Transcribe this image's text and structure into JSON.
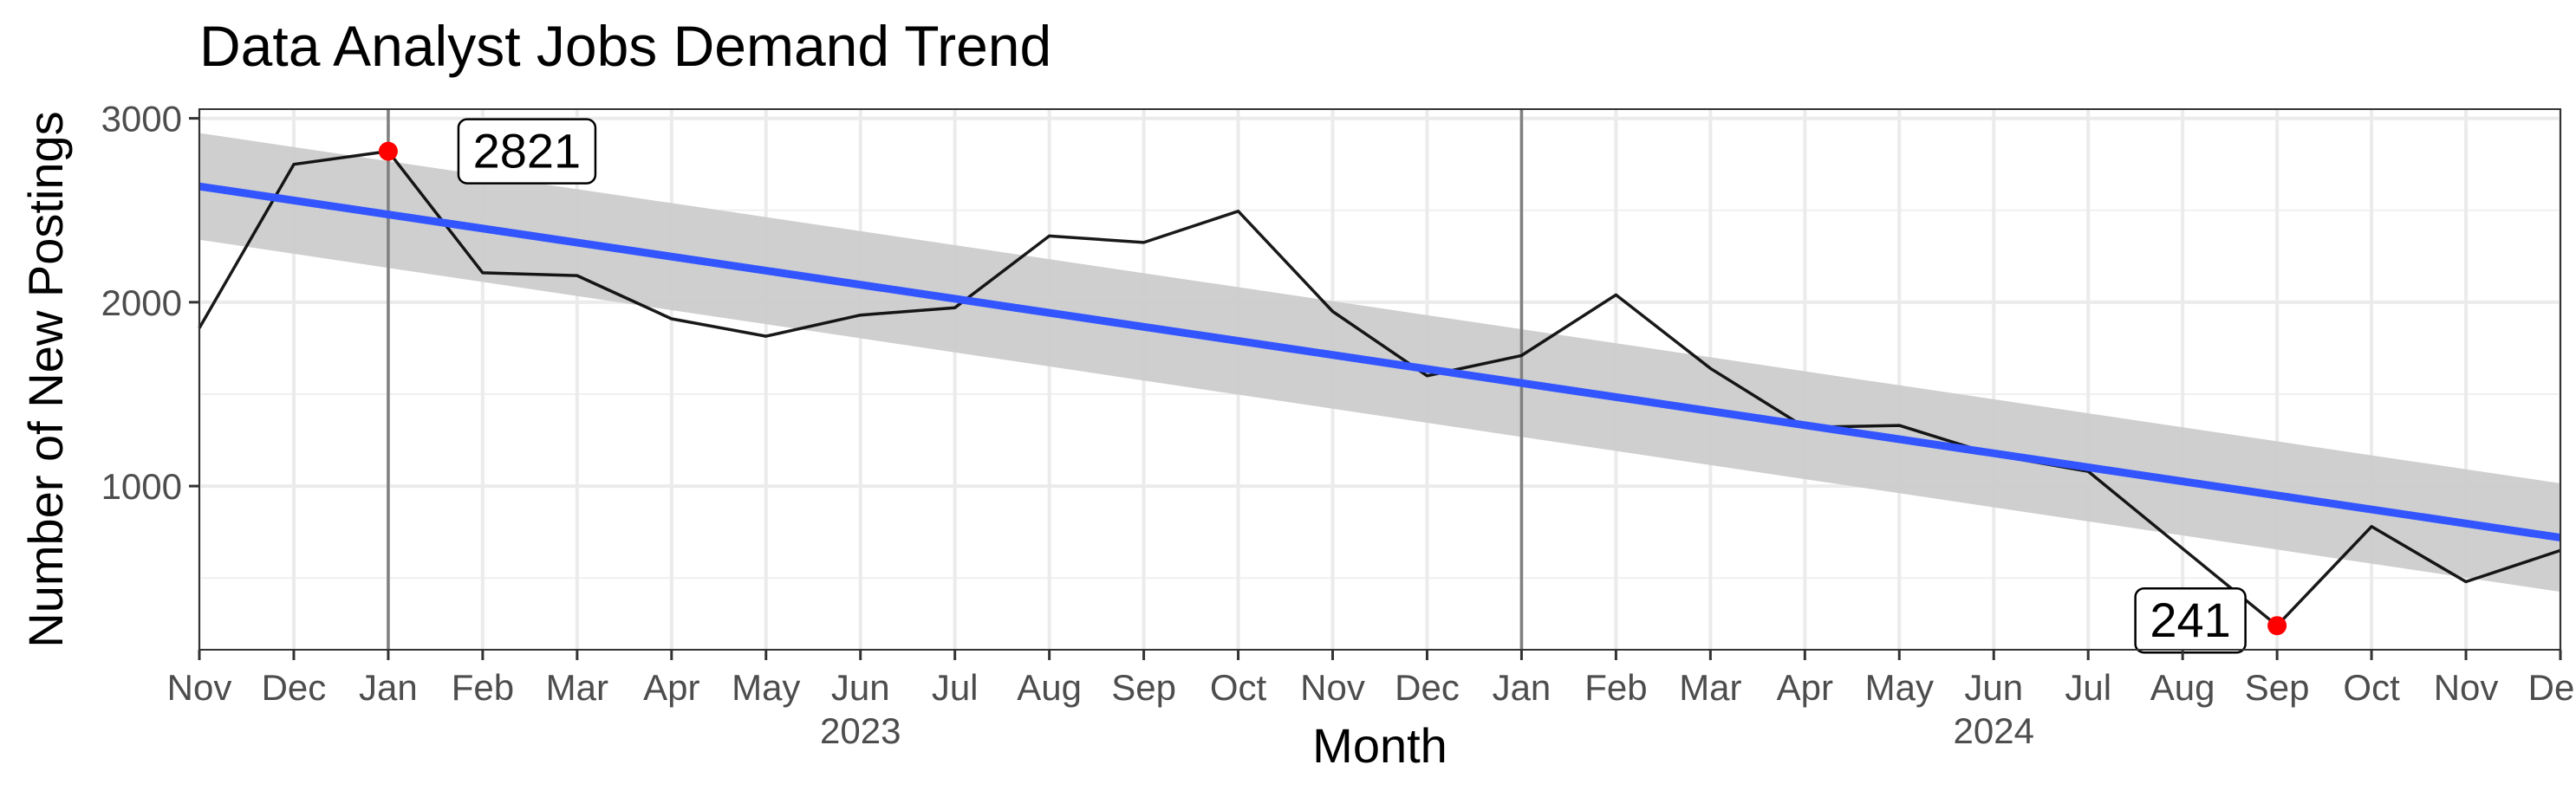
{
  "chart_data": {
    "type": "line",
    "title": "Data Analyst Jobs Demand Trend",
    "xlabel": "Month",
    "ylabel": "Number of New Postings",
    "ylim": [
      110,
      3050
    ],
    "y_ticks": [
      1000,
      2000,
      3000
    ],
    "y_tick_labels": [
      "1000",
      "2000",
      "3000"
    ],
    "x_tick_labels": [
      "Nov",
      "Dec",
      "Jan",
      "Feb",
      "Mar",
      "Apr",
      "May",
      "Jun",
      "Jul",
      "Aug",
      "Sep",
      "Oct",
      "Nov",
      "Dec",
      "Jan",
      "Feb",
      "Mar",
      "Apr",
      "May",
      "Jun",
      "Jul",
      "Aug",
      "Sep",
      "Oct",
      "Nov",
      "Dec"
    ],
    "year_labels": [
      {
        "label": "2023",
        "at_month": "2023-06"
      },
      {
        "label": "2024",
        "at_month": "2024-06"
      }
    ],
    "year_lines": [
      "2023-01",
      "2024-01"
    ],
    "series": [
      {
        "x": [
          "2022-11",
          "2022-12",
          "2023-01",
          "2023-02",
          "2023-03",
          "2023-04",
          "2023-05",
          "2023-06",
          "2023-07",
          "2023-08",
          "2023-09",
          "2023-10",
          "2023-11",
          "2023-12",
          "2024-01",
          "2024-02",
          "2024-03",
          "2024-04",
          "2024-05",
          "2024-06",
          "2024-07",
          "2024-08",
          "2024-09",
          "2024-10",
          "2024-11",
          "2024-12"
        ],
        "values": [
          1860,
          2750,
          2821,
          2160,
          2145,
          1910,
          1815,
          1930,
          1970,
          2360,
          2325,
          2495,
          1950,
          1600,
          1710,
          2040,
          1640,
          1320,
          1330,
          1170,
          1080,
          660,
          241,
          780,
          480,
          650
        ],
        "color": "#000000"
      }
    ],
    "trend": {
      "method": "linear",
      "start": {
        "x": "2022-11",
        "y": 2630,
        "lower": 2340,
        "upper": 2920
      },
      "end": {
        "x": "2024-12",
        "y": 720,
        "lower": 425,
        "upper": 1015
      },
      "color": "#3355ff",
      "band_color": "#cccccc"
    },
    "annotations": [
      {
        "x": "2023-01",
        "y": 2821,
        "label": "2821",
        "point_color": "#ff0000"
      },
      {
        "x": "2024-09",
        "y": 241,
        "label": "241",
        "point_color": "#ff0000"
      }
    ],
    "grid": true,
    "legend": "none"
  }
}
